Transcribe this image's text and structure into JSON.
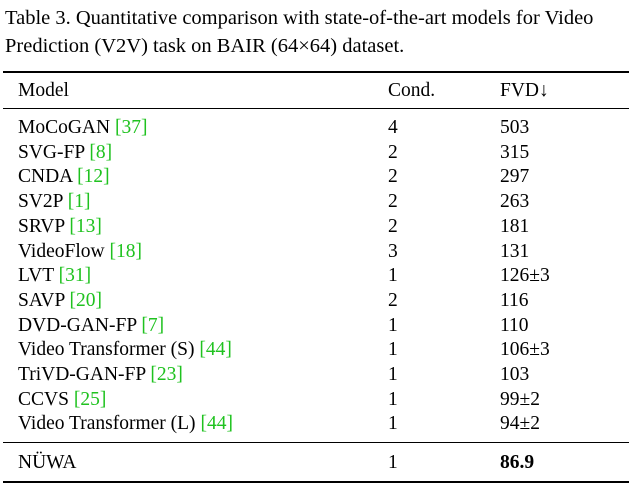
{
  "caption": {
    "text": "Table 3. Quantitative comparison with state-of-the-art models for Video Prediction (V2V) task on BAIR (64×64) dataset."
  },
  "table": {
    "headers": {
      "model": "Model",
      "cond": "Cond.",
      "fvd": "FVD↓"
    },
    "rows": [
      {
        "model": "MoCoGAN",
        "ref": "37",
        "cond": "4",
        "fvd": "503"
      },
      {
        "model": "SVG-FP",
        "ref": "8",
        "cond": "2",
        "fvd": "315"
      },
      {
        "model": "CNDA",
        "ref": "12",
        "cond": "2",
        "fvd": "297"
      },
      {
        "model": "SV2P",
        "ref": "1",
        "cond": "2",
        "fvd": "263"
      },
      {
        "model": "SRVP",
        "ref": "13",
        "cond": "2",
        "fvd": "181"
      },
      {
        "model": "VideoFlow",
        "ref": "18",
        "cond": "3",
        "fvd": "131"
      },
      {
        "model": "LVT",
        "ref": "31",
        "cond": "1",
        "fvd": "126±3"
      },
      {
        "model": "SAVP",
        "ref": "20",
        "cond": "2",
        "fvd": "116"
      },
      {
        "model": "DVD-GAN-FP",
        "ref": "7",
        "cond": "1",
        "fvd": "110"
      },
      {
        "model": "Video Transformer (S)",
        "ref": "44",
        "cond": "1",
        "fvd": "106±3"
      },
      {
        "model": "TriVD-GAN-FP",
        "ref": "23",
        "cond": "1",
        "fvd": "103"
      },
      {
        "model": "CCVS",
        "ref": "25",
        "cond": "1",
        "fvd": "99±2"
      },
      {
        "model": "Video Transformer (L)",
        "ref": "44",
        "cond": "1",
        "fvd": "94±2"
      }
    ],
    "final_row": {
      "model": "NÜWA",
      "cond": "1",
      "fvd": "86.9"
    },
    "colors": {
      "ref_link": "#1fc21f"
    }
  }
}
